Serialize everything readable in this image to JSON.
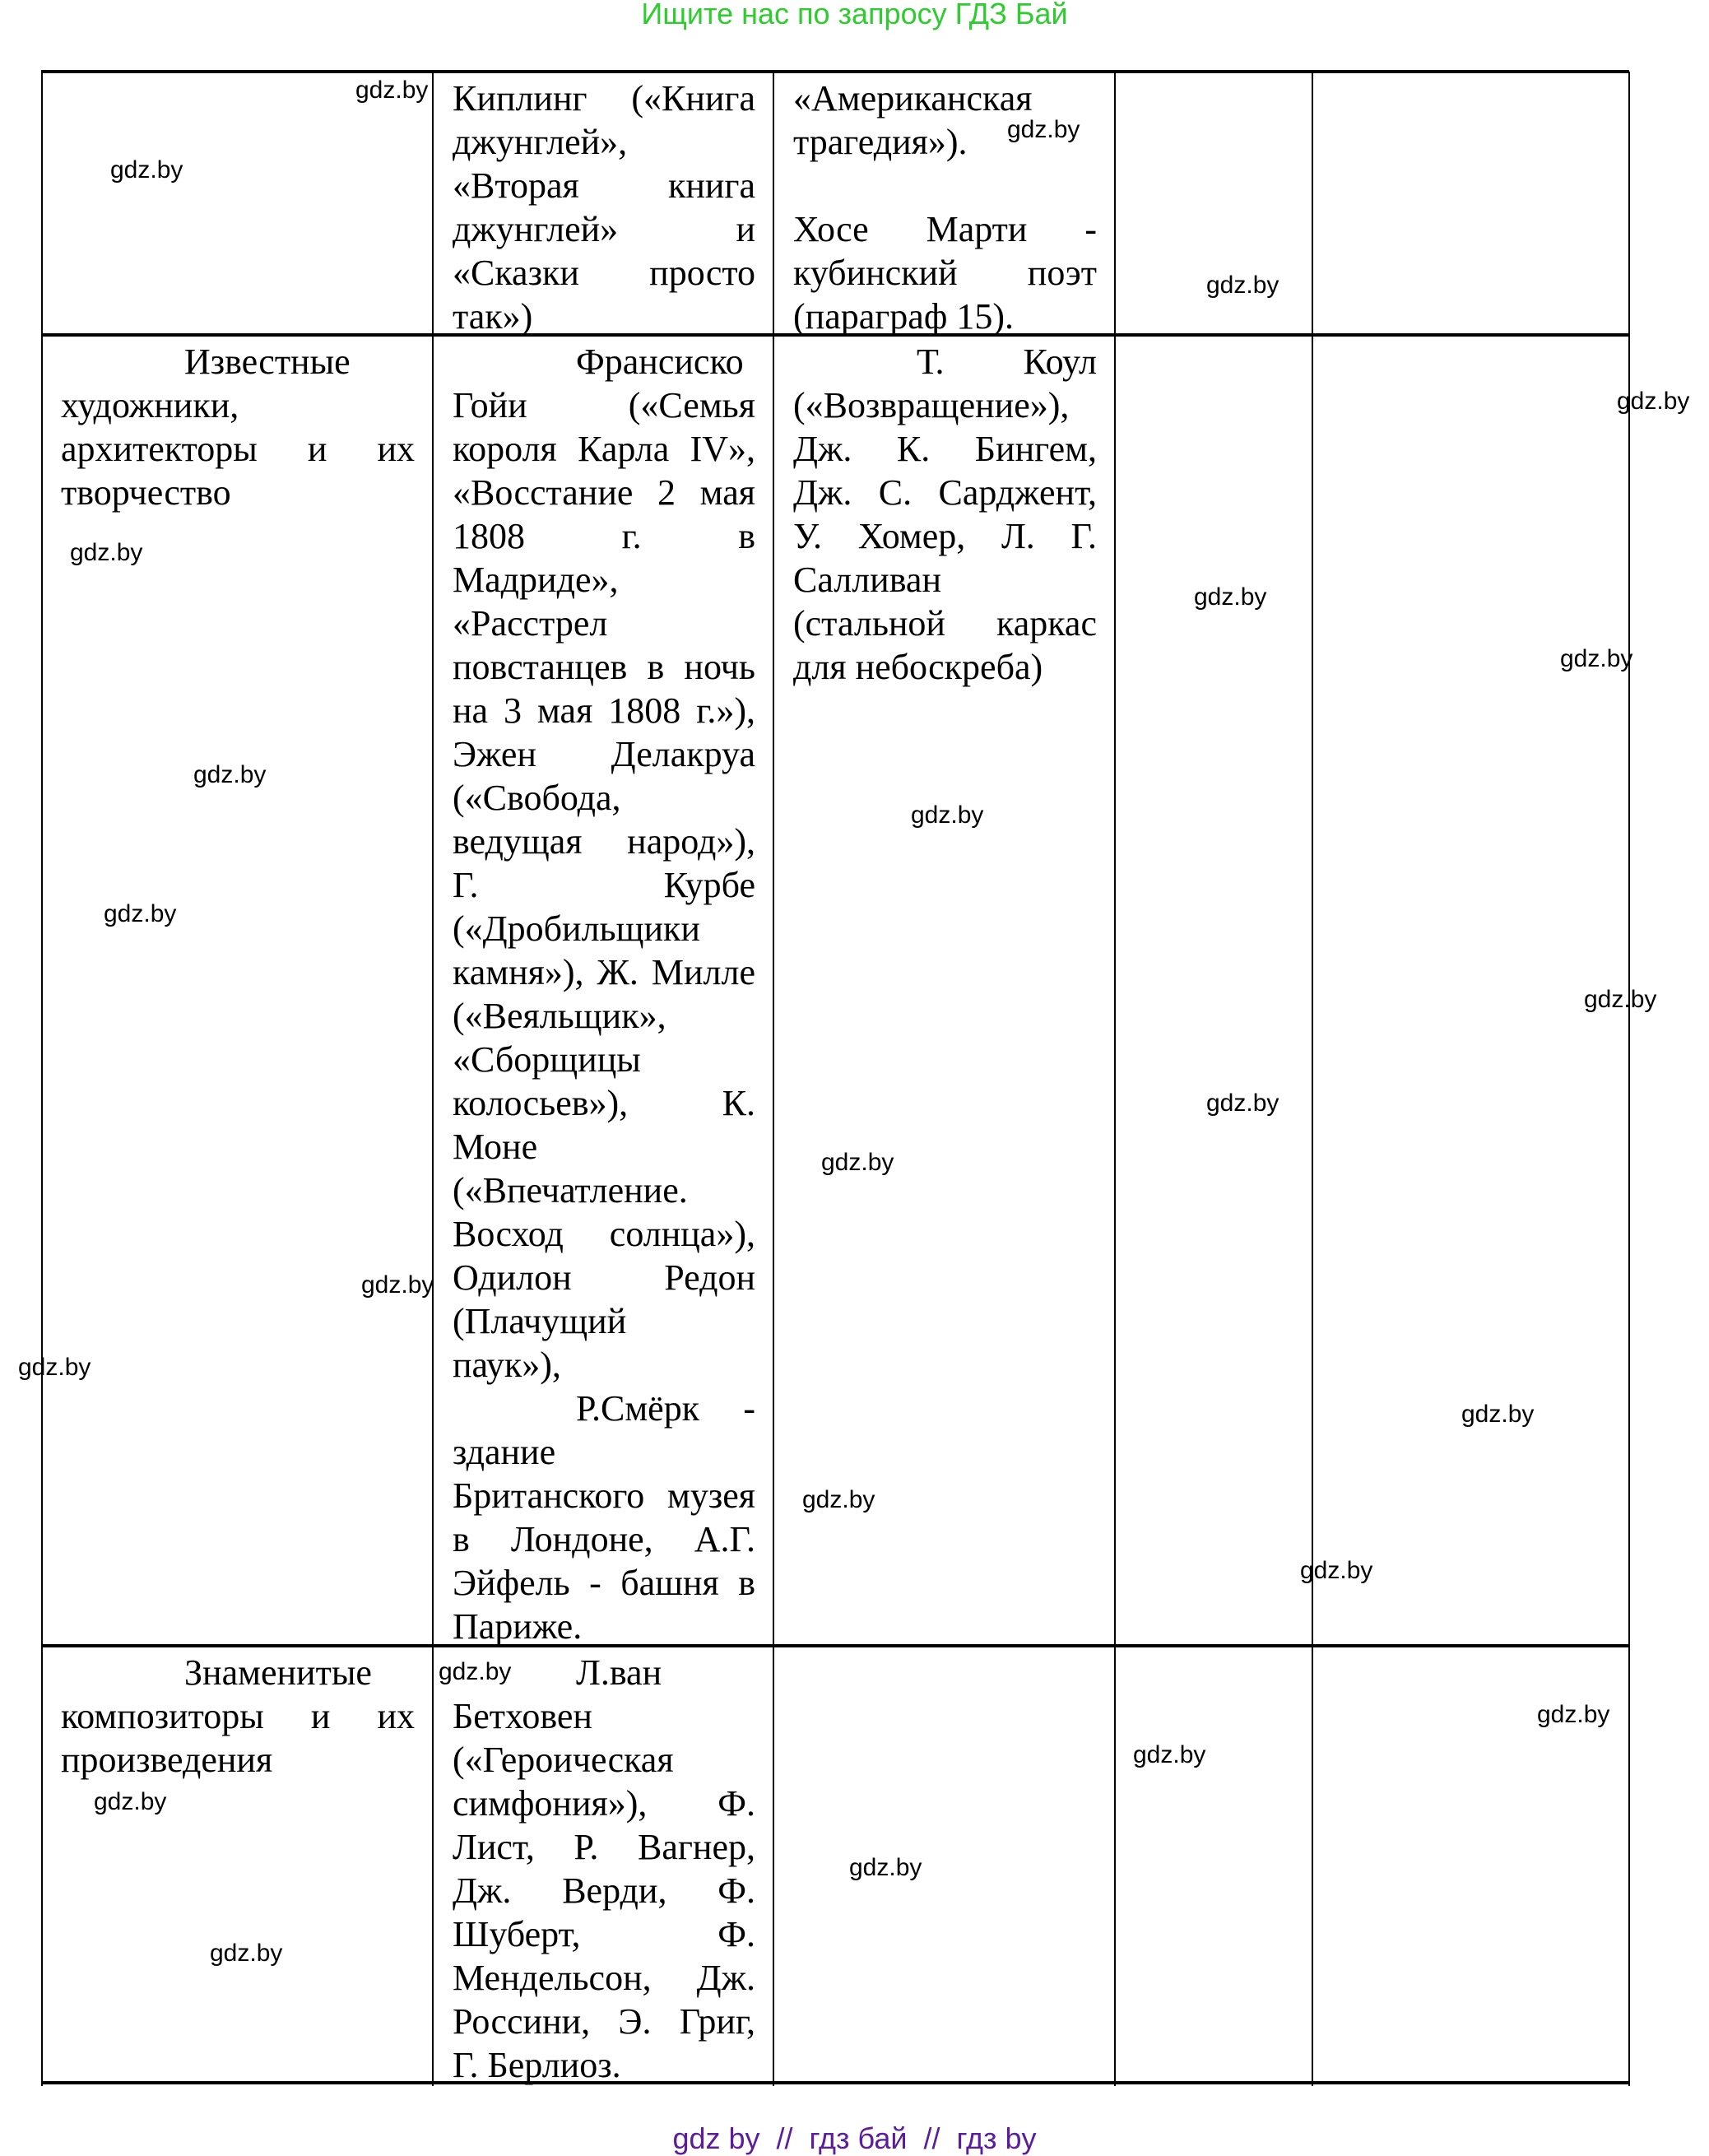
{
  "header": {
    "text": "Ищите нас по запросу ГДЗ Бай",
    "color": "#2ecc2e"
  },
  "footer": {
    "text": "gdz by  //  гдз бай  //  гдз by",
    "color": "#5b1d9b"
  },
  "watermark": "gdz.by",
  "table": {
    "rows": [
      {
        "cells": [
          [],
          [
            [
              "Киплинг («Книга",
              "джунглей»,"
            ],
            [
              "«Вторая книга",
              "джунглей» и",
              "«Сказки просто",
              "так»)"
            ]
          ],
          [
            [
              "«Американская",
              "трагедия»)."
            ],
            [
              ""
            ],
            [
              "Хосе Марти -",
              "кубинский поэт",
              "(параграф 15)."
            ]
          ],
          [],
          []
        ]
      },
      {
        "cells": [
          [
            [
              "Известные"
            ],
            [
              "художники,",
              "архитекторы и их",
              "творчество"
            ]
          ],
          [
            [
              "Франсиско",
              "Гойи («Семья",
              "короля Карла IV»,",
              "«Восстание 2 мая",
              "1808 г. в",
              "Мадриде»,",
              "«Расстрел",
              "повстанцев в ночь",
              "на 3 мая 1808 г.»),",
              "Эжен Делакруа",
              "(«Свобода,",
              "ведущая народ»),",
              "Г. Курбе",
              "(«Дробильщики",
              "камня»), Ж. Милле",
              "(«Веяльщик»,",
              "«Сборщицы",
              "колосьев»), К.",
              "Моне",
              "(«Впечатление.",
              "Восход солнца»),",
              "Одилон Редон",
              "(Плачущий",
              "паук»),"
            ],
            [
              "Р.Смёрк -",
              "здание",
              "Британского музея",
              "в Лондоне, А.Г.",
              "Эйфель - башня в",
              "Париже."
            ]
          ],
          [
            [
              "Т. Коул",
              "(«Возвращение»),",
              "Дж. К. Бингем,",
              "Дж. С. Сарджент,",
              "У. Хомер, Л. Г.",
              "Салливан",
              "(стальной каркас",
              "для небоскреба)"
            ]
          ],
          [],
          []
        ]
      },
      {
        "cells": [
          [
            [
              "Знаменитые"
            ],
            [
              "композиторы и их",
              "произведения"
            ]
          ],
          [
            [
              "Л.ван",
              "Бетховен",
              "(«Героическая",
              "симфония»), Ф.",
              "Лист, Р. Вагнер,",
              "Дж. Верди, Ф.",
              "Шуберт, Ф.",
              "Мендельсон, Дж.",
              "Россини, Э. Григ,",
              "Г. Берлиоз."
            ]
          ],
          [],
          [],
          []
        ]
      }
    ]
  }
}
